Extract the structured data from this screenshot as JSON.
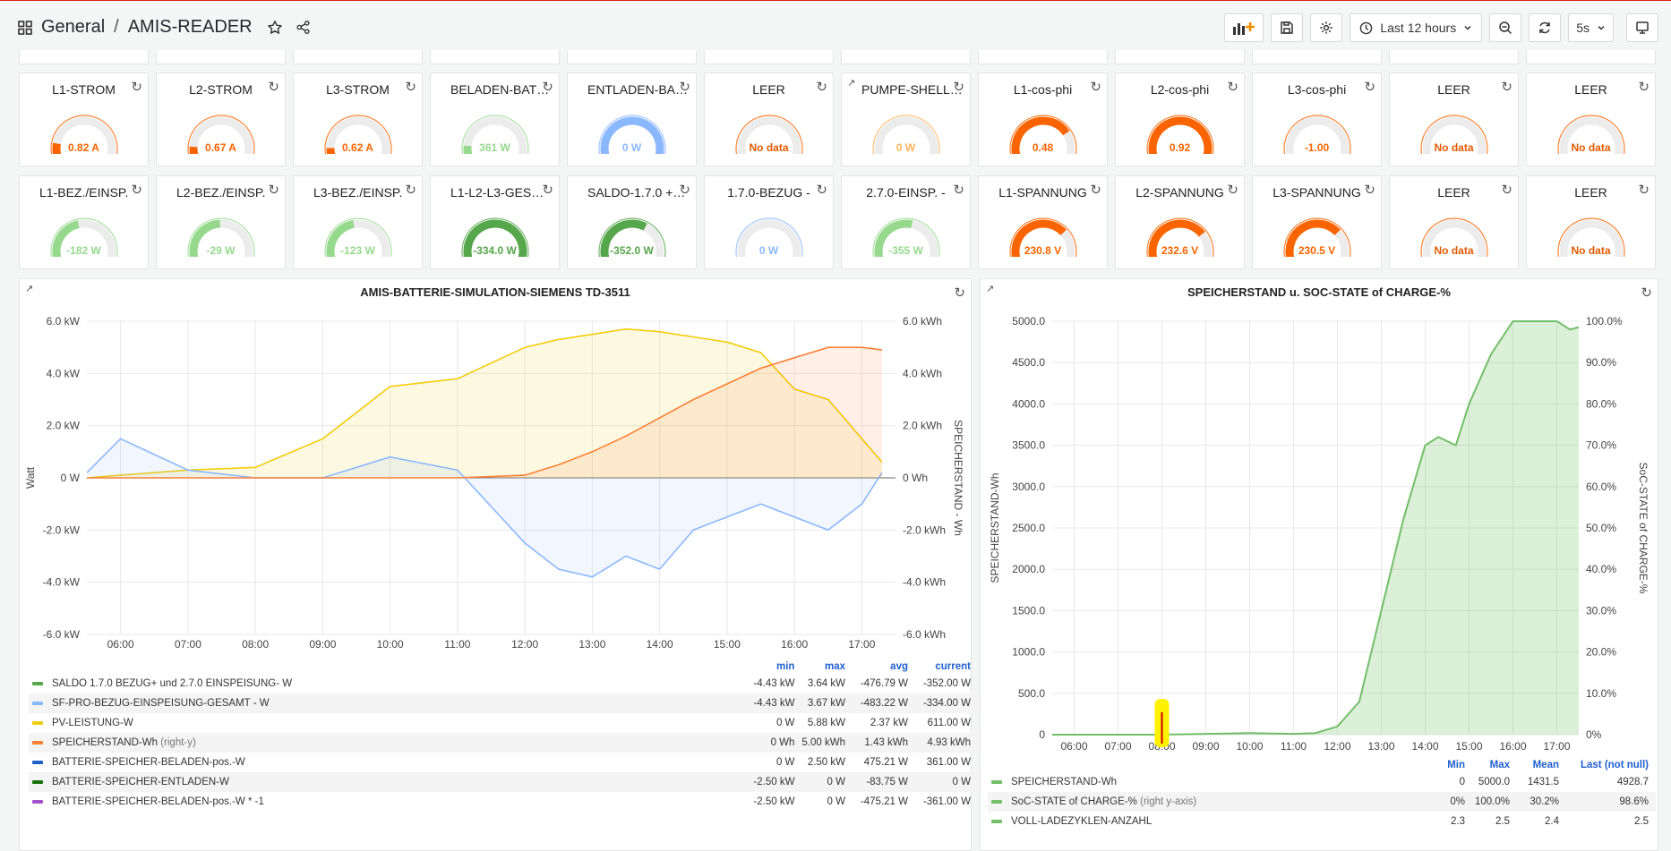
{
  "header": {
    "folder": "General",
    "separator": "/",
    "dashboard": "AMIS-READER",
    "time_range": "Last 12 hours",
    "refresh": "5s"
  },
  "row1": [
    {
      "title": "L1-STROM",
      "value": "0.82 A",
      "frac": 0.16,
      "color": "#fa6400"
    },
    {
      "title": "L2-STROM",
      "value": "0.67 A",
      "frac": 0.13,
      "color": "#fa6400"
    },
    {
      "title": "L3-STROM",
      "value": "0.62 A",
      "frac": 0.12,
      "color": "#fa6400"
    },
    {
      "title": "BELADEN-BAT…",
      "value": "361 W",
      "frac": 0.14,
      "color": "#96d98d"
    },
    {
      "title": "ENTLADEN-BA…",
      "value": "0 W",
      "frac": 1.0,
      "color": "#8ab8ff"
    },
    {
      "title": "LEER",
      "value": "No data",
      "frac": 0,
      "color": "#fa6400"
    },
    {
      "title": "PUMPE-SHELL…",
      "value": "0 W",
      "frac": 0,
      "color": "#ffb357",
      "ext": true
    },
    {
      "title": "L1-cos-phi",
      "value": "0.48",
      "frac": 0.74,
      "color": "#fa6400"
    },
    {
      "title": "L2-cos-phi",
      "value": "0.92",
      "frac": 0.96,
      "color": "#fa6400"
    },
    {
      "title": "L3-cos-phi",
      "value": "-1.00",
      "frac": 0,
      "color": "#fa6400"
    },
    {
      "title": "LEER",
      "value": "No data",
      "frac": 0,
      "color": "#fa6400"
    },
    {
      "title": "LEER",
      "value": "No data",
      "frac": 0,
      "color": "#fa6400"
    }
  ],
  "row2": [
    {
      "title": "L1-BEZ./EINSP.",
      "value": "-182 W",
      "frac": 0.45,
      "color": "#96d98d"
    },
    {
      "title": "L2-BEZ./EINSP.",
      "value": "-29 W",
      "frac": 0.49,
      "color": "#96d98d"
    },
    {
      "title": "L3-BEZ./EINSP.",
      "value": "-123 W",
      "frac": 0.46,
      "color": "#96d98d"
    },
    {
      "title": "L1-L2-L3-GES…",
      "value": "-334.0 W",
      "frac": 0.95,
      "color": "#56a64b"
    },
    {
      "title": "SALDO-1.7.0 +…",
      "value": "-352.0 W",
      "frac": 0.62,
      "color": "#56a64b"
    },
    {
      "title": "1.7.0-BEZUG -",
      "value": "0 W",
      "frac": 0,
      "color": "#8ab8ff"
    },
    {
      "title": "2.7.0-EINSP. -",
      "value": "-355 W",
      "frac": 0.55,
      "color": "#96d98d"
    },
    {
      "title": "L1-SPANNUNG",
      "value": "230.8 V",
      "frac": 0.7,
      "color": "#fa6400"
    },
    {
      "title": "L2-SPANNUNG",
      "value": "232.6 V",
      "frac": 0.72,
      "color": "#fa6400"
    },
    {
      "title": "L3-SPANNUNG",
      "value": "230.5 V",
      "frac": 0.7,
      "color": "#fa6400"
    },
    {
      "title": "LEER",
      "value": "No data",
      "frac": 0,
      "color": "#fa6400"
    },
    {
      "title": "LEER",
      "value": "No data",
      "frac": 0,
      "color": "#fa6400"
    }
  ],
  "chart_data": [
    {
      "type": "line",
      "title": "AMIS-BATTERIE-SIMULATION-SIEMENS TD-3511",
      "ylabel": "Watt",
      "y2label": "SPEICHERSTAND - Wh",
      "ylim": [
        -6,
        6
      ],
      "y_ticks": [
        "6.0 kW",
        "4.0 kW",
        "2.0 kW",
        "0 W",
        "-2.0 kW",
        "-4.0 kW",
        "-6.0 kW"
      ],
      "y2_ticks": [
        "6.0 kWh",
        "4.0 kWh",
        "2.0 kWh",
        "0 Wh",
        "-2.0 kWh",
        "-4.0 kWh",
        "-6.0 kWh"
      ],
      "x_ticks": [
        "06:00",
        "07:00",
        "08:00",
        "09:00",
        "10:00",
        "11:00",
        "12:00",
        "13:00",
        "14:00",
        "15:00",
        "16:00",
        "17:00"
      ],
      "x": [
        5.5,
        6,
        7,
        8,
        9,
        10,
        11,
        12,
        12.5,
        13,
        13.5,
        14,
        14.5,
        15,
        15.5,
        16,
        16.5,
        17,
        17.3
      ],
      "series": [
        {
          "name": "PV-LEISTUNG-W",
          "color": "#f2cc0c",
          "values": [
            0,
            0.1,
            0.3,
            0.4,
            1.5,
            3.5,
            3.8,
            5.0,
            5.3,
            5.5,
            5.7,
            5.6,
            5.4,
            5.2,
            4.8,
            3.4,
            3.0,
            1.5,
            0.6
          ]
        },
        {
          "name": "SF-PRO-BEZUG-EINSPEISUNG-GESAMT - W",
          "color": "#8ab8ff",
          "values": [
            0.2,
            1.5,
            0.3,
            0,
            0,
            0.8,
            0.3,
            -2.5,
            -3.5,
            -3.8,
            -3.0,
            -3.5,
            -2.0,
            -1.5,
            -1.0,
            -1.5,
            -2.0,
            -1.0,
            0.2
          ]
        },
        {
          "name": "SPEICHERSTAND-Wh",
          "color": "#ff7f34",
          "values": [
            0,
            0,
            0,
            0,
            0,
            0,
            0,
            0.1,
            0.5,
            1.0,
            1.6,
            2.3,
            3.0,
            3.6,
            4.2,
            4.6,
            5.0,
            5.0,
            4.9
          ]
        }
      ]
    },
    {
      "type": "area",
      "title": "SPEICHERSTAND u. SOC-STATE of CHARGE-%",
      "ylabel": "SPEICHERSTAND-Wh",
      "y2label": "SoC-STATE of CHARGE-%",
      "ylim": [
        0,
        5000
      ],
      "y_ticks": [
        "5000.0",
        "4500.0",
        "4000.0",
        "3500.0",
        "3000.0",
        "2500.0",
        "2000.0",
        "1500.0",
        "1000.0",
        "500.0",
        "0"
      ],
      "y2_ticks": [
        "100.0%",
        "90.0%",
        "80.0%",
        "70.0%",
        "60.0%",
        "50.0%",
        "40.0%",
        "30.0%",
        "20.0%",
        "10.0%",
        "0%"
      ],
      "x_ticks": [
        "06:00",
        "07:00",
        "08:00",
        "09:00",
        "10:00",
        "11:00",
        "12:00",
        "13:00",
        "14:00",
        "15:00",
        "16:00",
        "17:00"
      ],
      "x": [
        5.5,
        6,
        7,
        8,
        9,
        10,
        11,
        11.5,
        12,
        12.5,
        13,
        13.5,
        14,
        14.3,
        14.7,
        15,
        15.5,
        16,
        16.5,
        17,
        17.3,
        17.5
      ],
      "series": [
        {
          "name": "SPEICHERSTAND-Wh",
          "color": "#73bf69",
          "values": [
            0,
            0,
            0,
            0,
            10,
            20,
            10,
            20,
            100,
            400,
            1500,
            2600,
            3500,
            3600,
            3500,
            4000,
            4600,
            5000,
            5000,
            5000,
            4900,
            4928.7
          ]
        }
      ]
    }
  ],
  "legend1": {
    "headers": [
      "min",
      "max",
      "avg",
      "current"
    ],
    "rows": [
      {
        "name": "SALDO 1.7.0 BEZUG+ und 2.7.0 EINSPEISUNG- W",
        "tag": "",
        "color": "#56a64b",
        "min": "-4.43 kW",
        "max": "3.64 kW",
        "avg": "-476.79 W",
        "current": "-352.00 W"
      },
      {
        "name": "SF-PRO-BEZUG-EINSPEISUNG-GESAMT - W",
        "tag": "",
        "color": "#8ab8ff",
        "min": "-4.43 kW",
        "max": "3.67 kW",
        "avg": "-483.22 W",
        "current": "-334.00 W"
      },
      {
        "name": "PV-LEISTUNG-W",
        "tag": "",
        "color": "#f2cc0c",
        "min": "0 W",
        "max": "5.88 kW",
        "avg": "2.37 kW",
        "current": "611.00 W"
      },
      {
        "name": "SPEICHERSTAND-Wh",
        "tag": "(right-y)",
        "color": "#ff7f34",
        "min": "0 Wh",
        "max": "5.00 kWh",
        "avg": "1.43 kWh",
        "current": "4.93 kWh"
      },
      {
        "name": "BATTERIE-SPEICHER-BELADEN-pos.-W",
        "tag": "",
        "color": "#1f60c4",
        "min": "0 W",
        "max": "2.50 kW",
        "avg": "475.21 W",
        "current": "361.00 W"
      },
      {
        "name": "BATTERIE-SPEICHER-ENTLADEN-W",
        "tag": "",
        "color": "#19730e",
        "min": "-2.50 kW",
        "max": "0 W",
        "avg": "-83.75 W",
        "current": "0 W"
      },
      {
        "name": "BATTERIE-SPEICHER-BELADEN-pos.-W * -1",
        "tag": "",
        "color": "#a352cc",
        "min": "-2.50 kW",
        "max": "0 W",
        "avg": "-475.21 W",
        "current": "-361.00 W"
      }
    ]
  },
  "legend2": {
    "headers": [
      "Min",
      "Max",
      "Mean",
      "Last (not null)"
    ],
    "rows": [
      {
        "name": "SPEICHERSTAND-Wh",
        "tag": "",
        "color": "#73bf69",
        "min": "0",
        "max": "5000.0",
        "avg": "1431.5",
        "current": "4928.7"
      },
      {
        "name": "SoC-STATE of CHARGE-%",
        "tag": "(right y-axis)",
        "color": "#73bf69",
        "min": "0%",
        "max": "100.0%",
        "avg": "30.2%",
        "current": "98.6%"
      },
      {
        "name": "VOLL-LADEZYKLEN-ANZAHL",
        "tag": "",
        "color": "#73bf69",
        "min": "2.3",
        "max": "2.5",
        "avg": "2.4",
        "current": "2.5"
      }
    ]
  }
}
